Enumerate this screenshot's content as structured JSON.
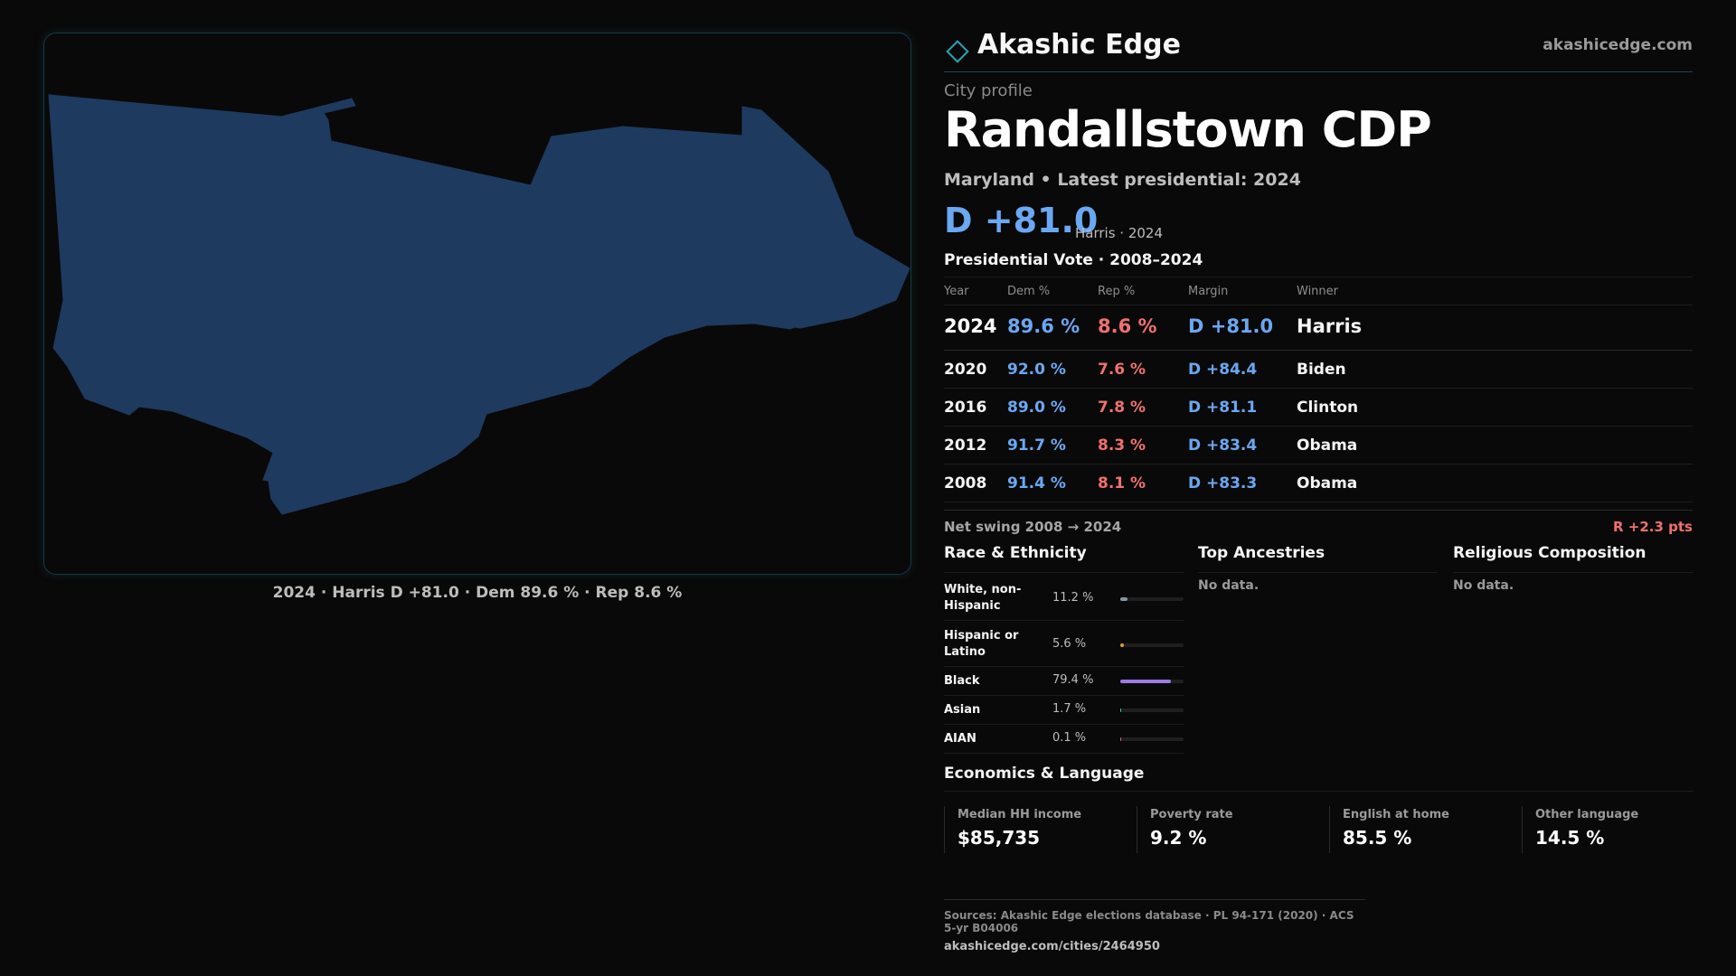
{
  "map": {
    "caption": "2024 · Harris D +81.0 · Dem 89.6 % · Rep 8.6 %",
    "fill_color": "#1e3a5f"
  },
  "header": {
    "brand": "Akashic Edge",
    "domain": "akashicedge.com",
    "logo_icon": "diamond-icon"
  },
  "profile": {
    "kicker": "City profile",
    "title": "Randallstown CDP",
    "subline": "Maryland • Latest presidential: 2024",
    "margin": "D +81.0",
    "margin_note": "Harris · 2024"
  },
  "vote": {
    "title": "Presidential Vote · 2008–2024",
    "headers": [
      "Year",
      "Dem %",
      "Rep %",
      "Margin",
      "Winner"
    ],
    "rows": [
      {
        "year": "2024",
        "dem": "89.6 %",
        "rep": "8.6 %",
        "margin": "D +81.0",
        "winner": "Harris"
      },
      {
        "year": "2020",
        "dem": "92.0 %",
        "rep": "7.6 %",
        "margin": "D +84.4",
        "winner": "Biden"
      },
      {
        "year": "2016",
        "dem": "89.0 %",
        "rep": "7.8 %",
        "margin": "D +81.1",
        "winner": "Clinton"
      },
      {
        "year": "2012",
        "dem": "91.7 %",
        "rep": "8.3 %",
        "margin": "D +83.4",
        "winner": "Obama"
      },
      {
        "year": "2008",
        "dem": "91.4 %",
        "rep": "8.1 %",
        "margin": "D +83.3",
        "winner": "Obama"
      }
    ],
    "swing_label": "Net swing 2008 → 2024",
    "swing_value": "R +2.3 pts"
  },
  "race": {
    "title": "Race & Ethnicity",
    "rows": [
      {
        "name": "White, non-Hispanic",
        "value": "11.2 %",
        "pct": 11.2,
        "color": "#8a93a8"
      },
      {
        "name": "Hispanic or Latino",
        "value": "5.6 %",
        "pct": 5.6,
        "color": "#e39a2c"
      },
      {
        "name": "Black",
        "value": "79.4 %",
        "pct": 79.4,
        "color": "#9b7bea"
      },
      {
        "name": "Asian",
        "value": "1.7 %",
        "pct": 1.7,
        "color": "#2fc4a8"
      },
      {
        "name": "AIAN",
        "value": "0.1 %",
        "pct": 0.1,
        "color": "#c46a6a"
      }
    ]
  },
  "ancestries": {
    "title": "Top Ancestries",
    "empty": "No data."
  },
  "religion": {
    "title": "Religious Composition",
    "empty": "No data."
  },
  "economics": {
    "title": "Economics & Language",
    "cells": [
      {
        "label": "Median HH income",
        "value": "$85,735"
      },
      {
        "label": "Poverty rate",
        "value": "9.2 %"
      },
      {
        "label": "English at home",
        "value": "85.5 %"
      },
      {
        "label": "Other language",
        "value": "14.5 %"
      }
    ]
  },
  "footer": {
    "sources": "Sources: Akashic Edge elections database · PL 94-171 (2020) · ACS 5-yr B04006",
    "url": "akashicedge.com/cities/2464950"
  }
}
